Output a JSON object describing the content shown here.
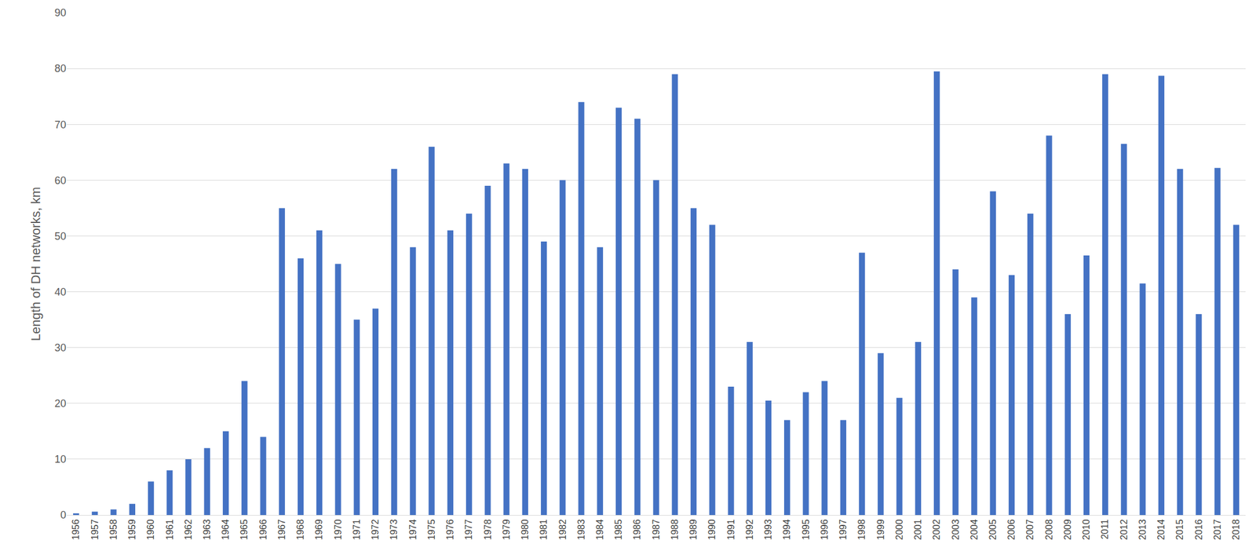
{
  "chart_data": {
    "type": "bar",
    "y_label": "Length of DH networks, km",
    "categories": [
      "1956",
      "1957",
      "1958",
      "1959",
      "1960",
      "1961",
      "1962",
      "1963",
      "1964",
      "1965",
      "1966",
      "1967",
      "1968",
      "1969",
      "1970",
      "1971",
      "1972",
      "1973",
      "1974",
      "1975",
      "1976",
      "1977",
      "1978",
      "1979",
      "1980",
      "1981",
      "1982",
      "1983",
      "1984",
      "1985",
      "1986",
      "1987",
      "1988",
      "1989",
      "1990",
      "1991",
      "1992",
      "1993",
      "1994",
      "1995",
      "1996",
      "1997",
      "1998",
      "1999",
      "2000",
      "2001",
      "2002",
      "2003",
      "2004",
      "2005",
      "2006",
      "2007",
      "2008",
      "2009",
      "2010",
      "2011",
      "2012",
      "2013",
      "2014",
      "2015",
      "2016",
      "2017",
      "2018"
    ],
    "values": [
      0.3,
      0.6,
      1,
      2,
      6,
      8,
      10,
      12,
      15,
      24,
      14,
      55,
      46,
      51,
      45,
      35,
      37,
      62,
      48,
      66,
      51,
      54,
      59,
      63,
      62,
      49,
      60,
      74,
      48,
      73,
      71,
      60,
      79,
      55,
      52,
      23,
      31,
      20.5,
      17,
      22,
      24,
      17,
      47,
      29,
      21,
      31,
      79.5,
      44,
      39,
      58,
      43,
      54,
      68,
      36,
      46.5,
      79,
      66.5,
      41.5,
      78.7,
      62,
      36,
      62.2,
      52
    ],
    "color": "#4472c4",
    "ylim": [
      0,
      90
    ],
    "yticks": [
      0,
      10,
      20,
      30,
      40,
      50,
      60,
      70,
      80,
      90
    ],
    "grid": true
  }
}
